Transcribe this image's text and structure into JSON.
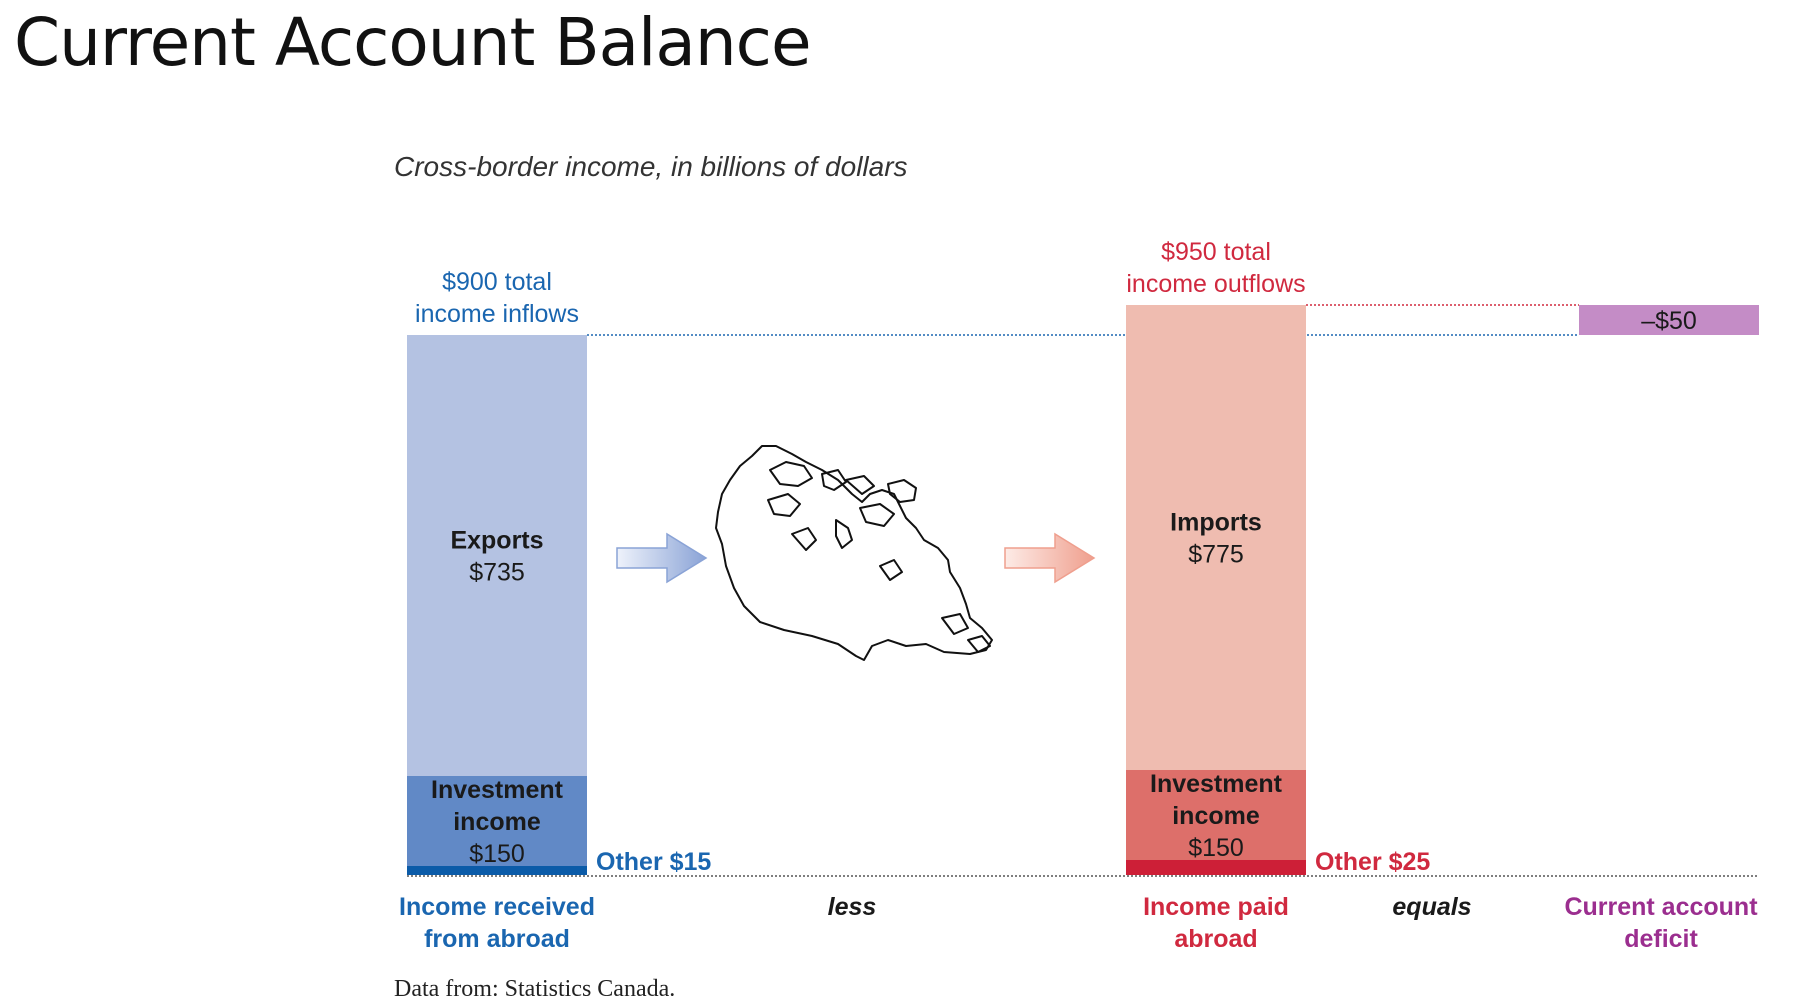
{
  "slide": {
    "title": "Current Account Balance"
  },
  "chart_data": {
    "type": "bar",
    "subtitle": "Cross-border income, in billions of dollars",
    "source": "Data from: Statistics Canada.",
    "connector_words": [
      "less",
      "equals"
    ],
    "colors": {
      "inflow_exports": "#b4c2e2",
      "inflow_investment": "#6189c6",
      "inflow_other": "#0b5ba8",
      "inflow_text": "#1a66b0",
      "outflow_imports": "#efbcb0",
      "outflow_investment": "#dd6f6a",
      "outflow_other": "#cd1f37",
      "outflow_text": "#d0293f",
      "deficit_fill": "#c48cc6",
      "deficit_text": "#9b2e8f"
    },
    "bars": [
      {
        "category": "Income received from abroad",
        "category_lines": [
          "Income received",
          "from abroad"
        ],
        "total": 900,
        "total_label_lines": [
          "$900 total",
          "income inflows"
        ],
        "segments": [
          {
            "name": "Other",
            "value": 15,
            "label_lines": [
              "Other $15"
            ],
            "label_position": "outside"
          },
          {
            "name": "Investment income",
            "value": 150,
            "label_lines": [
              "Investment",
              "income",
              "$150"
            ]
          },
          {
            "name": "Exports",
            "value": 735,
            "label_lines": [
              "Exports",
              "$735"
            ]
          }
        ]
      },
      {
        "category": "Income paid abroad",
        "category_lines": [
          "Income paid",
          "abroad"
        ],
        "total": 950,
        "total_label_lines": [
          "$950 total",
          "income outflows"
        ],
        "segments": [
          {
            "name": "Other",
            "value": 25,
            "label_lines": [
              "Other $25"
            ],
            "label_position": "outside"
          },
          {
            "name": "Investment income",
            "value": 150,
            "label_lines": [
              "Investment",
              "income",
              "$150"
            ]
          },
          {
            "name": "Imports",
            "value": 775,
            "label_lines": [
              "Imports",
              "$775"
            ]
          }
        ]
      },
      {
        "category": "Current account deficit",
        "category_lines": [
          "Current account",
          "deficit"
        ],
        "value": -50,
        "from": 900,
        "to": 950,
        "label": "–$50"
      }
    ]
  }
}
